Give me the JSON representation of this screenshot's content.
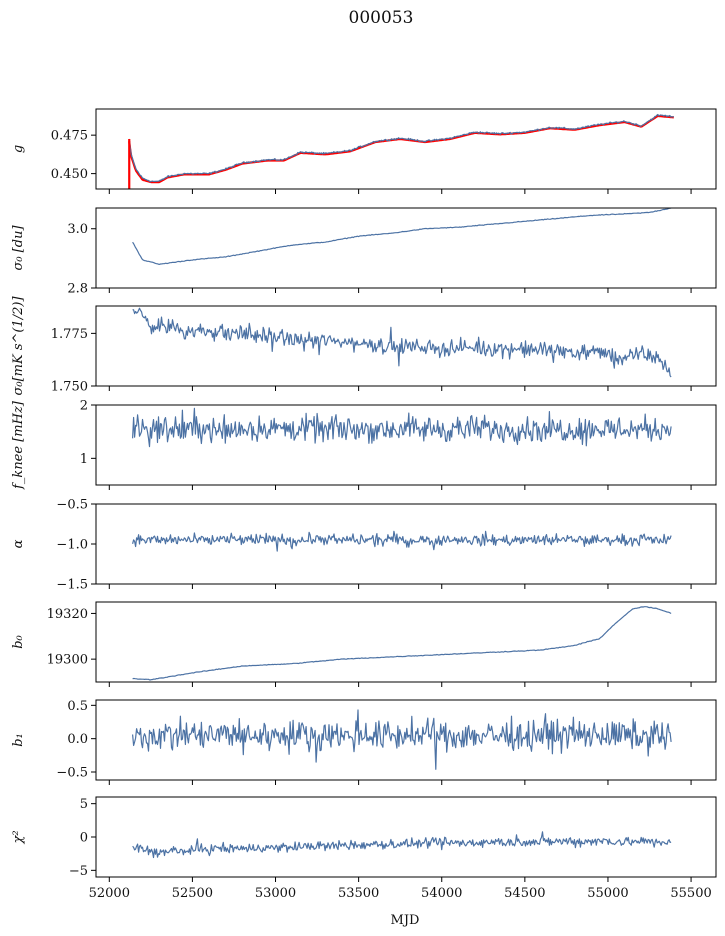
{
  "figure": {
    "title": "000053",
    "xlabel": "MJD",
    "x_ticks": [
      52000,
      52500,
      53000,
      53500,
      54000,
      54500,
      55000,
      55500
    ],
    "colors": {
      "series": "#4c72a4",
      "fit": "#ff0000",
      "axes": "#000000"
    }
  },
  "chart_data": [
    {
      "type": "line",
      "id": "g",
      "ylabel": "g",
      "ylim": [
        0.44,
        0.492
      ],
      "y_ticks": [
        0.45,
        0.475
      ],
      "y_tick_labels": [
        "0.450",
        "0.475"
      ],
      "x_range": [
        52120,
        55400
      ],
      "series": [
        {
          "values": [
            [
              52120,
              0.4725
            ],
            [
              52130,
              0.463
            ],
            [
              52160,
              0.453
            ],
            [
              52200,
              0.447
            ],
            [
              52250,
              0.445
            ],
            [
              52300,
              0.445
            ],
            [
              52350,
              0.448
            ],
            [
              52450,
              0.45
            ],
            [
              52600,
              0.45
            ],
            [
              52700,
              0.453
            ],
            [
              52800,
              0.457
            ],
            [
              52950,
              0.459
            ],
            [
              53050,
              0.459
            ],
            [
              53150,
              0.464
            ],
            [
              53300,
              0.463
            ],
            [
              53450,
              0.465
            ],
            [
              53600,
              0.471
            ],
            [
              53750,
              0.473
            ],
            [
              53900,
              0.471
            ],
            [
              54050,
              0.473
            ],
            [
              54200,
              0.477
            ],
            [
              54350,
              0.476
            ],
            [
              54500,
              0.477
            ],
            [
              54650,
              0.48
            ],
            [
              54800,
              0.479
            ],
            [
              54950,
              0.482
            ],
            [
              55100,
              0.484
            ],
            [
              55200,
              0.481
            ],
            [
              55300,
              0.488
            ],
            [
              55400,
              0.487
            ]
          ]
        },
        {
          "values": [
            [
              52120,
              0.471
            ],
            [
              52130,
              0.462
            ],
            [
              52160,
              0.452
            ],
            [
              52200,
              0.446
            ],
            [
              52250,
              0.4445
            ],
            [
              52300,
              0.4445
            ],
            [
              52350,
              0.4475
            ],
            [
              52450,
              0.4495
            ],
            [
              52600,
              0.4495
            ],
            [
              52700,
              0.4525
            ],
            [
              52800,
              0.4565
            ],
            [
              52950,
              0.4585
            ],
            [
              53050,
              0.4585
            ],
            [
              53150,
              0.4635
            ],
            [
              53300,
              0.4625
            ],
            [
              53450,
              0.4645
            ],
            [
              53600,
              0.4705
            ],
            [
              53750,
              0.4725
            ],
            [
              53900,
              0.4705
            ],
            [
              54050,
              0.4725
            ],
            [
              54200,
              0.4765
            ],
            [
              54350,
              0.4755
            ],
            [
              54500,
              0.4765
            ],
            [
              54650,
              0.4795
            ],
            [
              54800,
              0.4785
            ],
            [
              54950,
              0.4815
            ],
            [
              55100,
              0.4835
            ],
            [
              55200,
              0.4805
            ],
            [
              55300,
              0.4875
            ],
            [
              55400,
              0.4865
            ]
          ]
        }
      ]
    },
    {
      "type": "line",
      "id": "sigma0_du",
      "ylabel": "σ₀ [du]",
      "ylim": [
        2.8,
        3.07
      ],
      "y_ticks": [
        2.8,
        3.0
      ],
      "y_tick_labels": [
        "2.8",
        "3.0"
      ],
      "x_range": [
        52140,
        55380
      ],
      "series": [
        {
          "values": [
            [
              52140,
              2.955
            ],
            [
              52200,
              2.895
            ],
            [
              52300,
              2.88
            ],
            [
              52500,
              2.895
            ],
            [
              52700,
              2.905
            ],
            [
              52900,
              2.925
            ],
            [
              53100,
              2.945
            ],
            [
              53300,
              2.955
            ],
            [
              53500,
              2.975
            ],
            [
              53700,
              2.985
            ],
            [
              53900,
              3.0
            ],
            [
              54100,
              3.005
            ],
            [
              54300,
              3.015
            ],
            [
              54500,
              3.025
            ],
            [
              54700,
              3.035
            ],
            [
              54900,
              3.045
            ],
            [
              55100,
              3.05
            ],
            [
              55250,
              3.055
            ],
            [
              55380,
              3.07
            ]
          ]
        }
      ]
    },
    {
      "type": "line",
      "id": "sigma0_mks",
      "ylabel": "σ₀[mK s^(1/2)]",
      "ylim": [
        1.75,
        1.788
      ],
      "y_ticks": [
        1.75,
        1.775
      ],
      "y_tick_labels": [
        "1.750",
        "1.775"
      ],
      "x_range": [
        52140,
        55380
      ],
      "noise": 0.0035,
      "series": [
        {
          "values": [
            [
              52140,
              1.787
            ],
            [
              52250,
              1.779
            ],
            [
              52500,
              1.776
            ],
            [
              52800,
              1.775
            ],
            [
              53100,
              1.772
            ],
            [
              53400,
              1.771
            ],
            [
              53700,
              1.769
            ],
            [
              54000,
              1.768
            ],
            [
              54300,
              1.768
            ],
            [
              54600,
              1.767
            ],
            [
              54900,
              1.766
            ],
            [
              55000,
              1.765
            ],
            [
              55100,
              1.763
            ],
            [
              55200,
              1.765
            ],
            [
              55300,
              1.764
            ],
            [
              55360,
              1.757
            ],
            [
              55380,
              1.756
            ]
          ]
        }
      ]
    },
    {
      "type": "line",
      "id": "fknee",
      "ylabel": "f_knee [mHz]",
      "ylim": [
        0.5,
        2.0
      ],
      "y_ticks": [
        1,
        2
      ],
      "y_tick_labels": [
        "1",
        "2"
      ],
      "x_range": [
        52140,
        55380
      ],
      "noise": 0.22,
      "series": [
        {
          "values": [
            [
              52140,
              1.55
            ],
            [
              55380,
              1.55
            ]
          ]
        }
      ]
    },
    {
      "type": "line",
      "id": "alpha",
      "ylabel": "α",
      "ylim": [
        -1.5,
        -0.5
      ],
      "y_ticks": [
        -1.5,
        -1.0,
        -0.5
      ],
      "y_tick_labels": [
        "−1.5",
        "−1.0",
        "−0.5"
      ],
      "x_range": [
        52140,
        55380
      ],
      "noise": 0.06,
      "series": [
        {
          "values": [
            [
              52140,
              -0.95
            ],
            [
              55380,
              -0.95
            ]
          ]
        }
      ]
    },
    {
      "type": "line",
      "id": "b0",
      "ylabel": "b₀",
      "ylim": [
        19290,
        19325
      ],
      "y_ticks": [
        19300,
        19320
      ],
      "y_tick_labels": [
        "19300",
        "19320"
      ],
      "x_range": [
        52140,
        55380
      ],
      "series": [
        {
          "values": [
            [
              52140,
              19291.5
            ],
            [
              52250,
              19291
            ],
            [
              52500,
              19294
            ],
            [
              52800,
              19297
            ],
            [
              53100,
              19298
            ],
            [
              53400,
              19300
            ],
            [
              53700,
              19301
            ],
            [
              54000,
              19302
            ],
            [
              54300,
              19303
            ],
            [
              54600,
              19304
            ],
            [
              54800,
              19306
            ],
            [
              54950,
              19309
            ],
            [
              55050,
              19316
            ],
            [
              55150,
              19322
            ],
            [
              55220,
              19323
            ],
            [
              55300,
              19322
            ],
            [
              55380,
              19320
            ]
          ]
        }
      ]
    },
    {
      "type": "line",
      "id": "b1",
      "ylabel": "b₁",
      "ylim": [
        -0.62,
        0.58
      ],
      "y_ticks": [
        -0.5,
        0.0,
        0.5
      ],
      "y_tick_labels": [
        "−0.5",
        "0.0",
        "0.5"
      ],
      "x_range": [
        52140,
        55380
      ],
      "noise": 0.2,
      "series": [
        {
          "values": [
            [
              52140,
              0.05
            ],
            [
              55380,
              0.05
            ]
          ]
        }
      ]
    },
    {
      "type": "line",
      "id": "chi2",
      "ylabel": "χ²",
      "ylim": [
        -6,
        6
      ],
      "y_ticks": [
        -5,
        0,
        5
      ],
      "y_tick_labels": [
        "−5",
        "0",
        "5"
      ],
      "x_range": [
        52140,
        55380
      ],
      "noise": 0.65,
      "series": [
        {
          "values": [
            [
              52140,
              -1.5
            ],
            [
              52300,
              -2.3
            ],
            [
              52600,
              -1.8
            ],
            [
              53000,
              -1.6
            ],
            [
              53500,
              -1.2
            ],
            [
              54000,
              -0.9
            ],
            [
              54500,
              -0.7
            ],
            [
              55000,
              -0.6
            ],
            [
              55380,
              -0.8
            ]
          ]
        }
      ]
    }
  ]
}
